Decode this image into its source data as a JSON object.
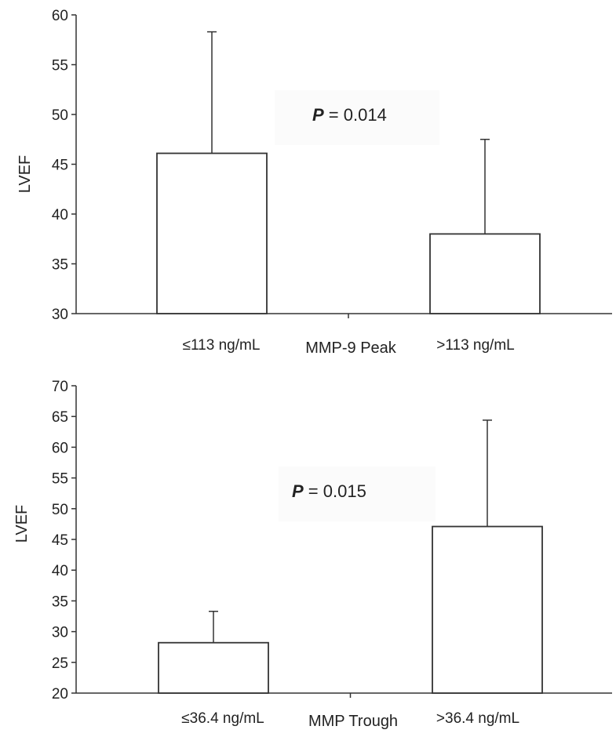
{
  "chart_data": [
    {
      "type": "bar",
      "ylabel": "LVEF",
      "xlabel": "MMP-9 Peak",
      "categories": [
        "≤113 ng/mL",
        ">113 ng/mL"
      ],
      "values": [
        46.1,
        38.0
      ],
      "error_upper": [
        58.3,
        47.5
      ],
      "ylim": [
        30,
        60
      ],
      "yticks": [
        30,
        35,
        40,
        45,
        50,
        55,
        60
      ],
      "p_label": "P",
      "p_value": "= 0.014",
      "bar_fill": "#ffffff",
      "stroke": "#333333"
    },
    {
      "type": "bar",
      "ylabel": "LVEF",
      "xlabel": "MMP Trough",
      "categories": [
        "≤36.4 ng/mL",
        ">36.4 ng/mL"
      ],
      "values": [
        28.2,
        47.1
      ],
      "error_upper": [
        33.3,
        64.4
      ],
      "ylim": [
        20,
        70
      ],
      "yticks": [
        20,
        25,
        30,
        35,
        40,
        45,
        50,
        55,
        60,
        65,
        70
      ],
      "p_label": "P",
      "p_value": "= 0.015",
      "bar_fill": "#ffffff",
      "stroke": "#333333"
    }
  ]
}
